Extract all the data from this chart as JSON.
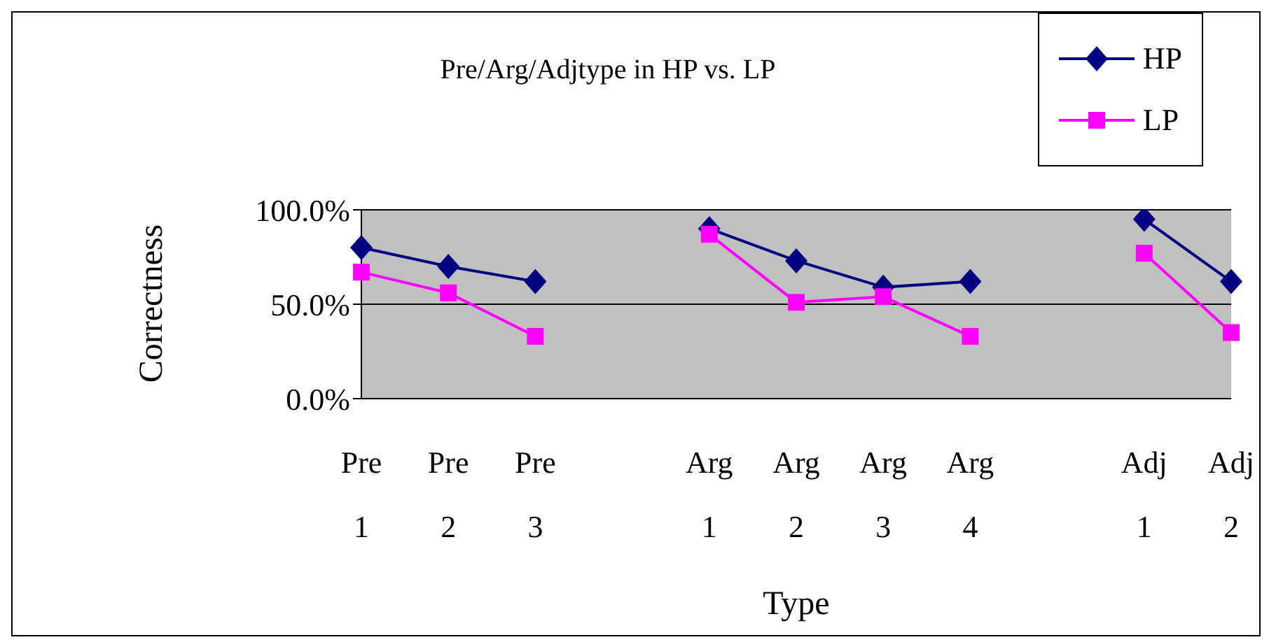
{
  "chart_data": {
    "type": "line",
    "title": "Pre/Arg/Adjtype in HP vs. LP",
    "xlabel": "Type",
    "ylabel": "Correctness",
    "categories": [
      "Pre 1",
      "Pre 2",
      "Pre 3",
      null,
      "Arg 1",
      "Arg 2",
      "Arg 3",
      "Arg 4",
      null,
      "Adj 1",
      "Adj 2"
    ],
    "series": [
      {
        "name": "HP",
        "color": "#000080",
        "marker": "diamond",
        "values": [
          80,
          70,
          62,
          null,
          90,
          73,
          59,
          62,
          null,
          95,
          62
        ]
      },
      {
        "name": "LP",
        "color": "#ff00ff",
        "marker": "square",
        "values": [
          67,
          56,
          33,
          null,
          87,
          51,
          54,
          33,
          null,
          77,
          35
        ]
      }
    ],
    "ylim": [
      0,
      100
    ],
    "yticks": [
      {
        "value": 0,
        "label": "0.0%"
      },
      {
        "value": 50,
        "label": "50.0%"
      },
      {
        "value": 100,
        "label": "100.0%"
      }
    ],
    "grid": "y",
    "legend": "top right",
    "line_style": "solid"
  }
}
